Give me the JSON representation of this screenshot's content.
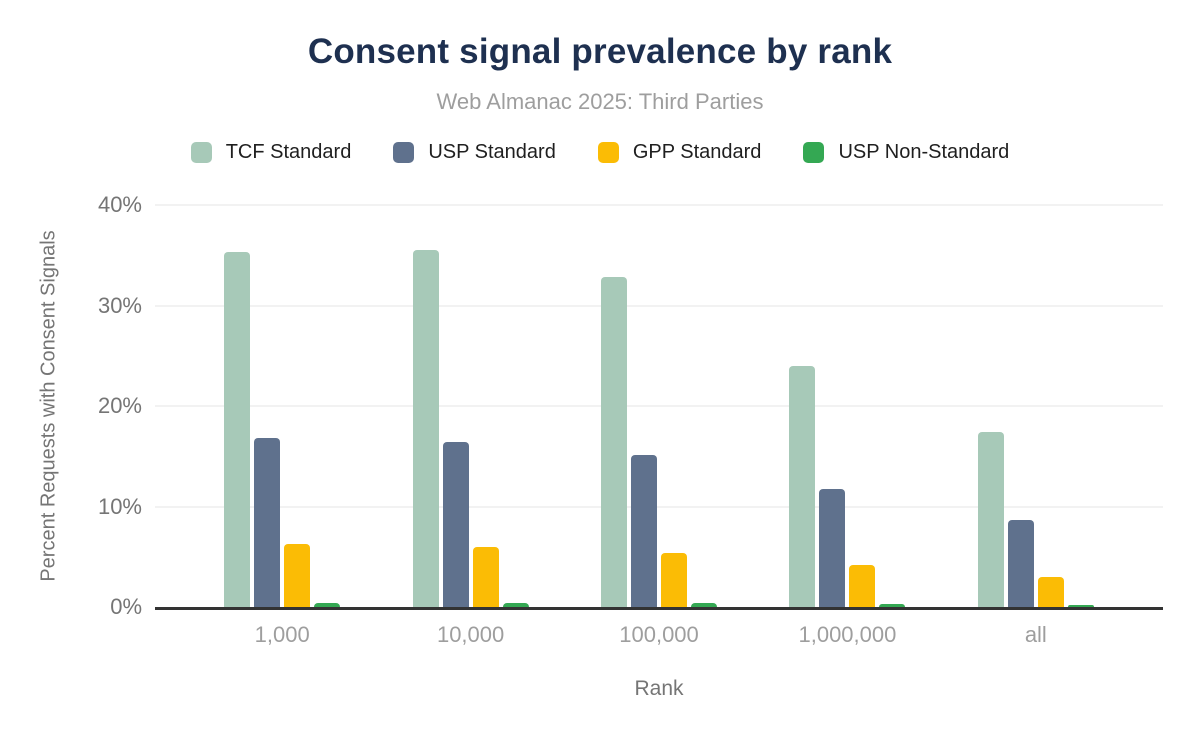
{
  "chart_data": {
    "type": "bar",
    "title": "Consent signal prevalence by rank",
    "subtitle": "Web Almanac 2025: Third Parties",
    "xlabel": "Rank",
    "ylabel": "Percent Requests with Consent Signals",
    "categories": [
      "1,000",
      "10,000",
      "100,000",
      "1,000,000",
      "all"
    ],
    "series": [
      {
        "name": "TCF Standard",
        "color": "#a7c9b8",
        "values": [
          35.3,
          35.5,
          32.8,
          24.0,
          17.4
        ]
      },
      {
        "name": "USP Standard",
        "color": "#5f718d",
        "values": [
          16.8,
          16.4,
          15.1,
          11.7,
          8.7
        ]
      },
      {
        "name": "GPP Standard",
        "color": "#fbbc05",
        "values": [
          6.3,
          6.0,
          5.4,
          4.2,
          3.0
        ]
      },
      {
        "name": "USP Non-Standard",
        "color": "#34a853",
        "values": [
          0.4,
          0.4,
          0.4,
          0.3,
          0.2
        ]
      }
    ],
    "ylim": [
      0,
      40
    ],
    "yticks": [
      {
        "value": 0,
        "label": "0%"
      },
      {
        "value": 10,
        "label": "10%"
      },
      {
        "value": 20,
        "label": "20%"
      },
      {
        "value": 30,
        "label": "30%"
      },
      {
        "value": 40,
        "label": "40%"
      }
    ],
    "grid": true,
    "legend_position": "top"
  },
  "colors": {
    "title": "#1e3050",
    "subtitle": "#9e9e9e",
    "axis_line": "#333333",
    "gridline": "#f2f2f2",
    "tick_text": "#757575"
  }
}
